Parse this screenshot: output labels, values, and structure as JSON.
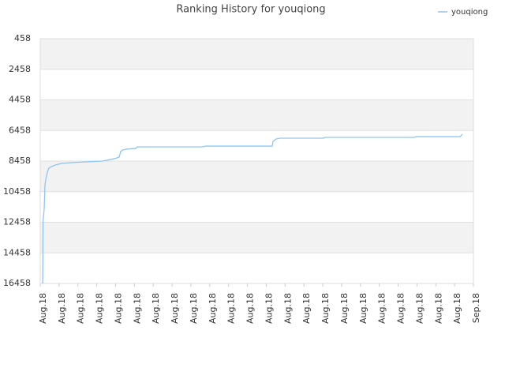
{
  "chart_data": {
    "type": "line",
    "title": "Ranking History for youqiong",
    "xlim": [
      0,
      23
    ],
    "xticks": [
      {
        "value": 0,
        "label": "Aug.18"
      },
      {
        "value": 1,
        "label": "Aug.18"
      },
      {
        "value": 2,
        "label": "Aug.18"
      },
      {
        "value": 3,
        "label": "Aug.18"
      },
      {
        "value": 4,
        "label": "Aug.18"
      },
      {
        "value": 5,
        "label": "Aug.18"
      },
      {
        "value": 6,
        "label": "Aug.18"
      },
      {
        "value": 7,
        "label": "Aug.18"
      },
      {
        "value": 8,
        "label": "Aug.18"
      },
      {
        "value": 9,
        "label": "Aug.18"
      },
      {
        "value": 10,
        "label": "Aug.18"
      },
      {
        "value": 11,
        "label": "Aug.18"
      },
      {
        "value": 12,
        "label": "Aug.18"
      },
      {
        "value": 13,
        "label": "Aug.18"
      },
      {
        "value": 14,
        "label": "Aug.18"
      },
      {
        "value": 15,
        "label": "Aug.18"
      },
      {
        "value": 16,
        "label": "Aug.18"
      },
      {
        "value": 17,
        "label": "Aug.18"
      },
      {
        "value": 18,
        "label": "Aug.18"
      },
      {
        "value": 19,
        "label": "Aug.18"
      },
      {
        "value": 20,
        "label": "Aug.18"
      },
      {
        "value": 21,
        "label": "Aug.18"
      },
      {
        "value": 22,
        "label": "Aug.18"
      },
      {
        "value": 23,
        "label": "Sep.18"
      }
    ],
    "ylim": [
      16458,
      458
    ],
    "yticks": [
      458,
      2458,
      4458,
      6458,
      8458,
      10458,
      12458,
      14458,
      16458
    ],
    "grid": true,
    "legend": "top-right",
    "x": [
      0.13,
      0.15,
      0.21,
      0.25,
      0.29,
      0.38,
      0.46,
      0.59,
      0.8,
      1.13,
      1.63,
      2.47,
      3.31,
      3.94,
      4.19,
      4.27,
      4.36,
      4.57,
      5.07,
      5.15,
      6.24,
      8.67,
      8.76,
      12.32,
      12.36,
      12.53,
      12.74,
      15.04,
      15.12,
      19.86,
      19.94,
      22.29,
      22.41
    ],
    "series": [
      {
        "name": "youqiong",
        "color": "#90c4f0",
        "values": [
          16458,
          12380,
          11600,
          10058,
          9700,
          9180,
          8920,
          8820,
          8716,
          8610,
          8560,
          8510,
          8460,
          8300,
          8200,
          7840,
          7740,
          7680,
          7630,
          7530,
          7530,
          7530,
          7480,
          7480,
          7170,
          7010,
          6960,
          6960,
          6910,
          6910,
          6860,
          6860,
          6700
        ]
      }
    ]
  }
}
